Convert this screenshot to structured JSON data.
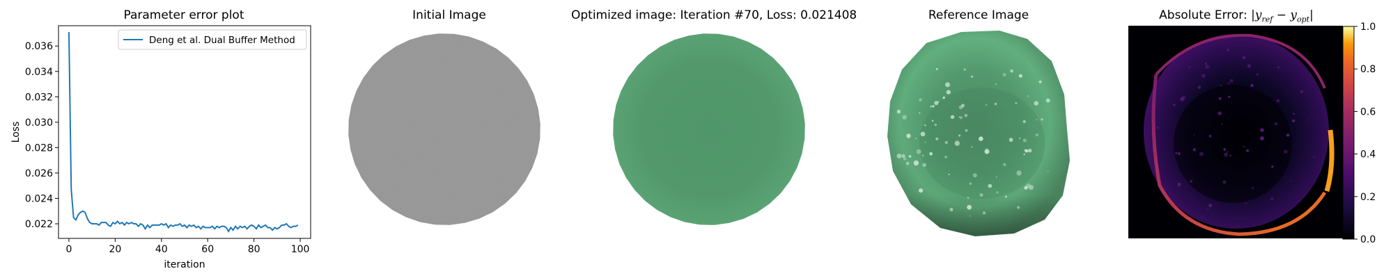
{
  "chart_data": [
    {
      "type": "line",
      "title": "Parameter error plot",
      "xlabel": "iteration",
      "ylabel": "Loss",
      "xlim": [
        -4.5,
        104.5
      ],
      "ylim": [
        0.02085,
        0.0376
      ],
      "xticks": [
        "0",
        "20",
        "40",
        "60",
        "80",
        "100"
      ],
      "xtick_values": [
        0,
        20,
        40,
        60,
        80,
        100
      ],
      "yticks": [
        "0.022",
        "0.024",
        "0.026",
        "0.028",
        "0.030",
        "0.032",
        "0.034",
        "0.036"
      ],
      "ytick_values": [
        0.022,
        0.024,
        0.026,
        0.028,
        0.03,
        0.032,
        0.034,
        0.036
      ],
      "legend_position": "top-right",
      "series": [
        {
          "name": "Deng et al. Dual Buffer Method",
          "color": "#1f77b4",
          "x": [
            0,
            1,
            2,
            3,
            4,
            5,
            6,
            7,
            8,
            9,
            10,
            11,
            12,
            13,
            14,
            15,
            16,
            17,
            18,
            19,
            20,
            21,
            22,
            23,
            24,
            25,
            26,
            27,
            28,
            29,
            30,
            31,
            32,
            33,
            34,
            35,
            36,
            37,
            38,
            39,
            40,
            41,
            42,
            43,
            44,
            45,
            46,
            47,
            48,
            49,
            50,
            51,
            52,
            53,
            54,
            55,
            56,
            57,
            58,
            59,
            60,
            61,
            62,
            63,
            64,
            65,
            66,
            67,
            68,
            69,
            70,
            71,
            72,
            73,
            74,
            75,
            76,
            77,
            78,
            79,
            80,
            81,
            82,
            83,
            84,
            85,
            86,
            87,
            88,
            89,
            90,
            91,
            92,
            93,
            94,
            95,
            96,
            97,
            98,
            99
          ],
          "y": [
            0.0371,
            0.0247,
            0.0225,
            0.0223,
            0.0227,
            0.0229,
            0.023,
            0.0229,
            0.0224,
            0.0221,
            0.022,
            0.022,
            0.022,
            0.0219,
            0.0221,
            0.0221,
            0.0221,
            0.0219,
            0.0218,
            0.0221,
            0.022,
            0.0222,
            0.022,
            0.0221,
            0.0219,
            0.0221,
            0.022,
            0.0221,
            0.022,
            0.022,
            0.0218,
            0.022,
            0.0219,
            0.0216,
            0.0219,
            0.0217,
            0.0219,
            0.0219,
            0.0219,
            0.0219,
            0.022,
            0.0219,
            0.022,
            0.0217,
            0.0219,
            0.0218,
            0.0219,
            0.0219,
            0.022,
            0.0218,
            0.0219,
            0.0217,
            0.0219,
            0.0218,
            0.0219,
            0.0217,
            0.0218,
            0.0216,
            0.0218,
            0.0217,
            0.0217,
            0.0217,
            0.0218,
            0.0216,
            0.0218,
            0.0217,
            0.0218,
            0.0218,
            0.0217,
            0.0214,
            0.0217,
            0.0215,
            0.0218,
            0.0216,
            0.0218,
            0.0217,
            0.0218,
            0.0216,
            0.0218,
            0.0219,
            0.0218,
            0.0216,
            0.0219,
            0.0217,
            0.0218,
            0.0219,
            0.0217,
            0.0217,
            0.0215,
            0.0217,
            0.0216,
            0.0217,
            0.0219,
            0.0219,
            0.022,
            0.0218,
            0.0217,
            0.0218,
            0.0218,
            0.0219
          ]
        }
      ]
    },
    {
      "type": "image",
      "title": "Initial Image",
      "fill_color": "#969696"
    },
    {
      "type": "image",
      "title": "Optimized image: Iteration #70, Loss: 0.021408",
      "fill_color": "#549a6b"
    },
    {
      "type": "image",
      "title": "Reference Image",
      "fill_color": "#5aa878"
    },
    {
      "type": "heatmap",
      "title_prefix": "Absolute Error: ",
      "title_math": {
        "y1": "y",
        "sub1": "ref",
        "minus": "−",
        "y2": "y",
        "sub2": "opt"
      },
      "colormap": "inferno",
      "colorbar_ticks": [
        "0.0",
        "0.2",
        "0.4",
        "0.6",
        "0.8",
        "1.0"
      ],
      "colorbar_tick_values": [
        0.0,
        0.2,
        0.4,
        0.6,
        0.8,
        1.0
      ]
    }
  ]
}
